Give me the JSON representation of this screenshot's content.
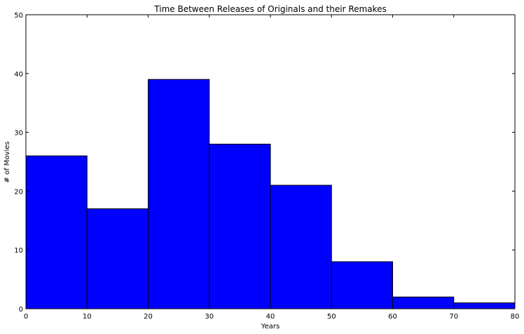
{
  "chart_data": {
    "type": "bar",
    "title": "Time Between Releases of Originals and their Remakes",
    "xlabel": "Years",
    "ylabel": "# of Movies",
    "bins": [
      [
        0,
        10
      ],
      [
        10,
        20
      ],
      [
        20,
        30
      ],
      [
        30,
        40
      ],
      [
        40,
        50
      ],
      [
        50,
        60
      ],
      [
        60,
        70
      ],
      [
        70,
        80
      ]
    ],
    "values": [
      26,
      17,
      39,
      28,
      21,
      8,
      2,
      1
    ],
    "xlim": [
      0,
      80
    ],
    "ylim": [
      0,
      50
    ],
    "xticks": [
      0,
      10,
      20,
      30,
      40,
      50,
      60,
      70,
      80
    ],
    "yticks": [
      0,
      10,
      20,
      30,
      40,
      50
    ],
    "bar_color": "#0000ff",
    "edge_color": "#000000",
    "grid": false,
    "legend": "none"
  }
}
